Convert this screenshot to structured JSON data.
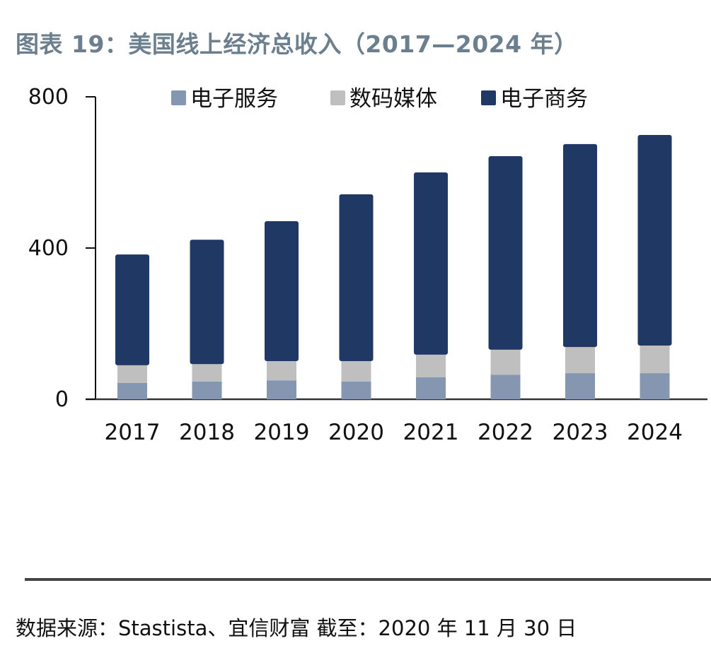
{
  "title": "图表 19：美国线上经济总收入（2017—2024 年）",
  "source": "数据来源：Stastista、宜信财富  截至：2020 年 11 月 30 日",
  "chart_data": {
    "type": "bar",
    "stacked": true,
    "title": "美国线上经济总收入（2017—2024 年）",
    "xlabel": "",
    "ylabel": "",
    "categories": [
      "2017",
      "2018",
      "2019",
      "2020",
      "2021",
      "2022",
      "2023",
      "2024"
    ],
    "ylim": [
      0,
      800
    ],
    "yticks": [
      0,
      400,
      800
    ],
    "grid": false,
    "legend_position": "top",
    "series": [
      {
        "name": "电子服务",
        "color": "#8496b0",
        "values": [
          43,
          47,
          50,
          47,
          58,
          65,
          69,
          69
        ]
      },
      {
        "name": "数码媒体",
        "color": "#bfbfbf",
        "values": [
          47,
          46,
          51,
          54,
          60,
          66,
          69,
          73
        ]
      },
      {
        "name": "电子商务",
        "color": "#203864",
        "values": [
          293,
          329,
          370,
          441,
          482,
          512,
          537,
          557
        ]
      }
    ]
  }
}
